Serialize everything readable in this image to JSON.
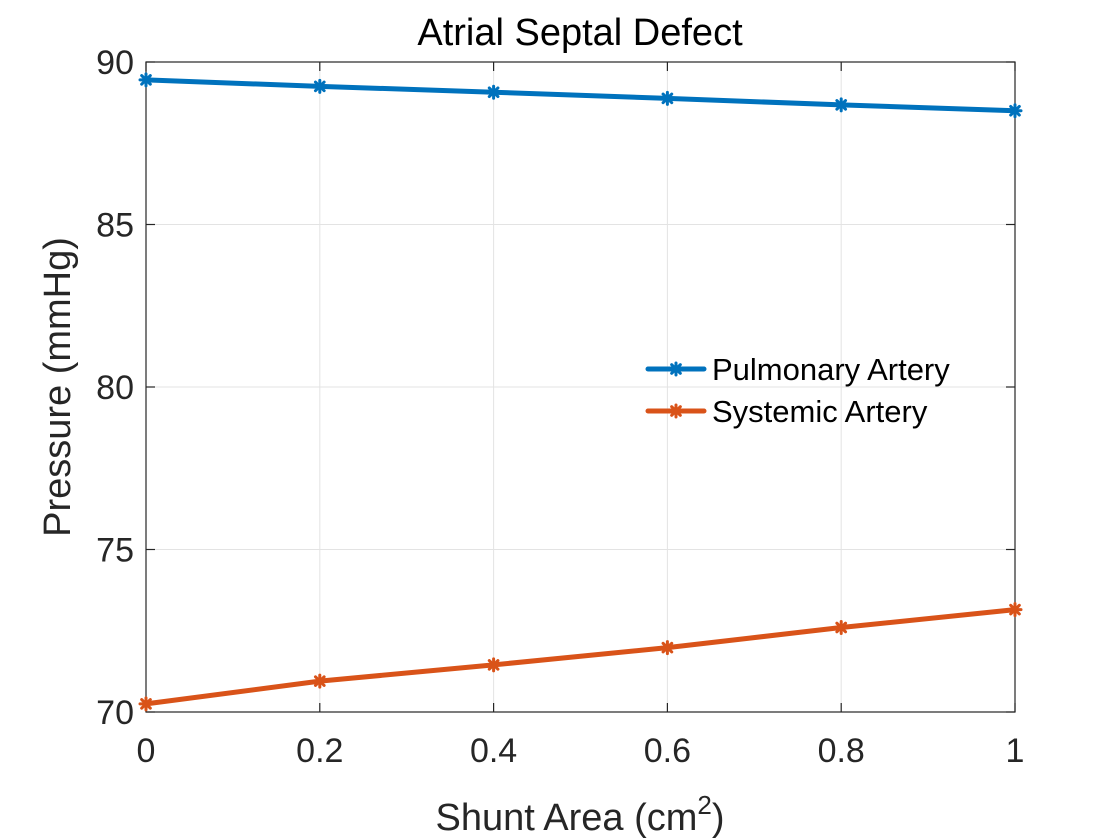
{
  "chart_data": {
    "type": "line",
    "title": "Atrial Septal Defect",
    "xlabel": "Shunt Area (cm",
    "xlabel_superscript": "2",
    "xlabel_suffix": ")",
    "ylabel": "Pressure (mmHg)",
    "x": [
      0,
      0.2,
      0.4,
      0.6,
      0.8,
      1
    ],
    "xlim": [
      0,
      1
    ],
    "ylim": [
      70,
      90
    ],
    "xticks": [
      0,
      0.2,
      0.4,
      0.6,
      0.8,
      1
    ],
    "xtick_labels": [
      "0",
      "0.2",
      "0.4",
      "0.6",
      "0.8",
      "1"
    ],
    "yticks": [
      70,
      75,
      80,
      85,
      90
    ],
    "ytick_labels": [
      "70",
      "75",
      "80",
      "85",
      "90"
    ],
    "grid": true,
    "legend_position": "right-middle",
    "series": [
      {
        "name": "Pulmonary Artery",
        "color": "#0072BD",
        "marker": "asterisk",
        "values": [
          89.45,
          89.25,
          89.07,
          88.88,
          88.68,
          88.5
        ]
      },
      {
        "name": "Systemic Artery",
        "color": "#D95319",
        "marker": "asterisk",
        "values": [
          70.25,
          70.95,
          71.45,
          71.98,
          72.6,
          73.15
        ]
      }
    ]
  }
}
